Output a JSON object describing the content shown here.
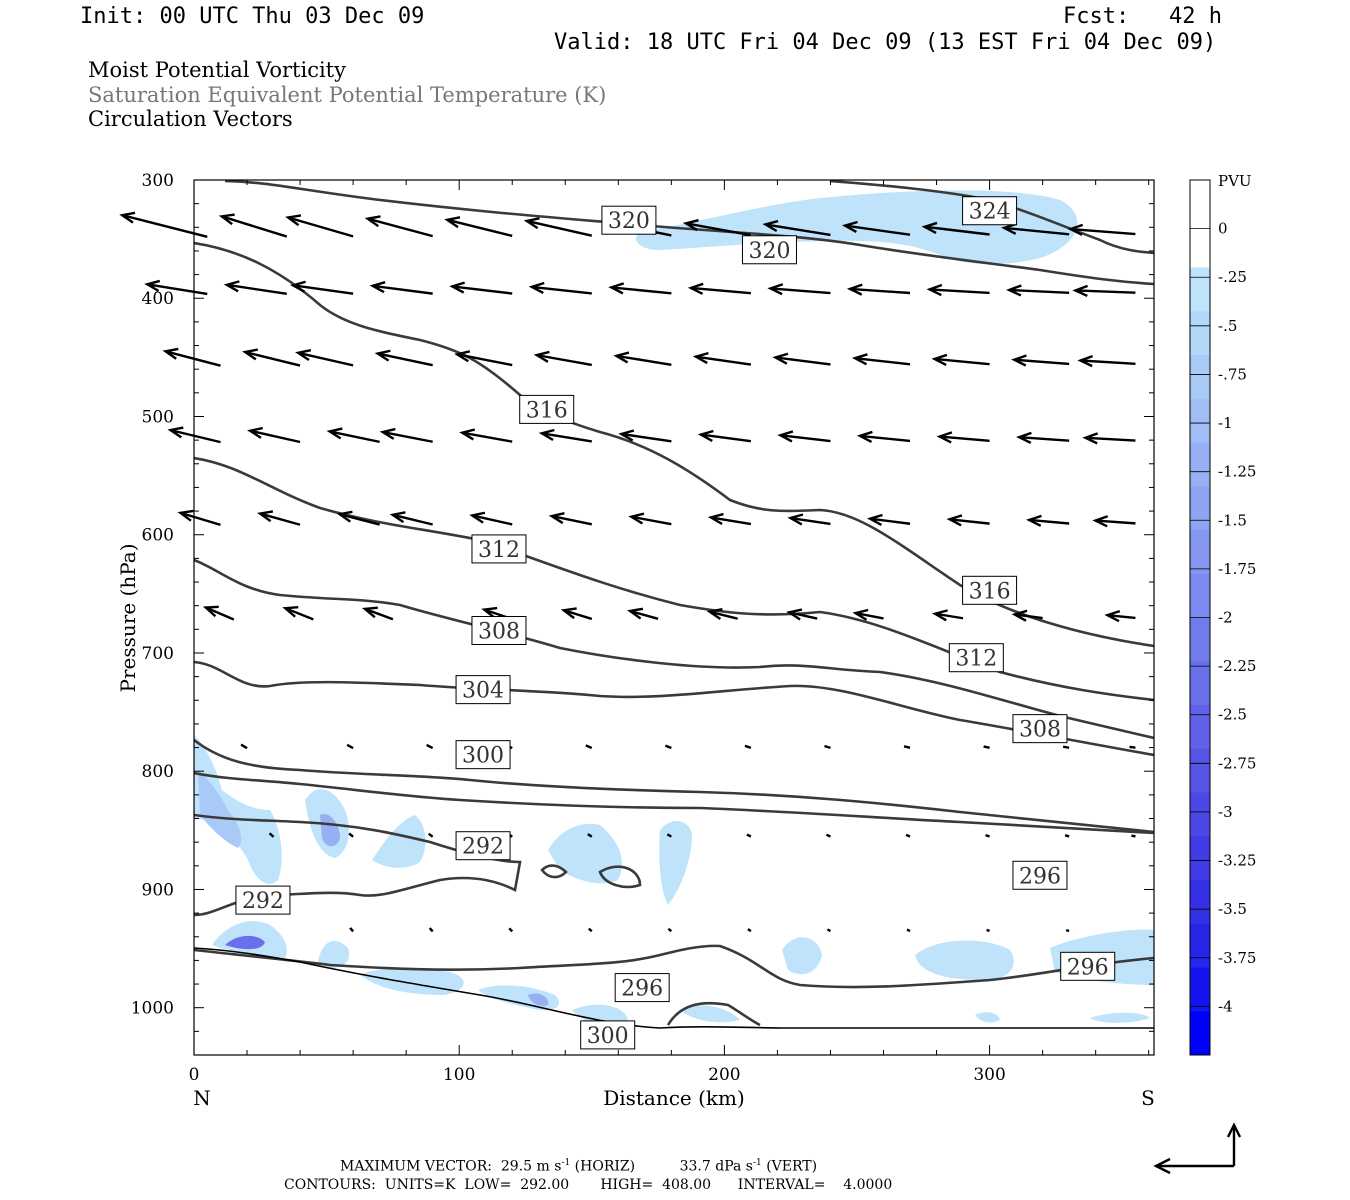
{
  "header": {
    "init": "Init: 00 UTC Thu 03 Dec 09",
    "fcst": "Fcst:   42 h",
    "valid": "Valid: 18 UTC Fri 04 Dec 09 (13 EST Fri 04 Dec 09)"
  },
  "titles": [
    "Moist Potential Vorticity",
    "Saturation Equivalent Potential Temperature (K)",
    "Circulation Vectors"
  ],
  "footer": {
    "max_vector_label": "MAXIMUM VECTOR:",
    "max_vector_horiz": "29.5 m s",
    "horiz_unit": "(HORIZ)",
    "max_vector_vert": "33.7 dPa s",
    "vert_unit": "(VERT)",
    "exp": "-1",
    "contours": "CONTOURS:  UNITS=K  LOW=  292.00       HIGH=  408.00      INTERVAL=    4.0000"
  },
  "chart_data": {
    "type": "cross-section contour",
    "xlabel": "Distance (km)",
    "ylabel": "Pressure (hPa)",
    "x_ticks": [
      0,
      100,
      200,
      300
    ],
    "y_ticks": [
      300,
      400,
      500,
      600,
      700,
      800,
      900,
      1000
    ],
    "xlim": [
      0,
      362
    ],
    "ylim": [
      300,
      1040
    ],
    "y_reversed": true,
    "end_labels": {
      "left": "N",
      "right": "S"
    },
    "colorbar": {
      "unit": "PVU",
      "labels": [
        "0",
        "-.25",
        "-.5",
        "-.75",
        "-1",
        "-1.25",
        "-1.5",
        "-1.75",
        "-2",
        "-2.25",
        "-2.5",
        "-2.75",
        "-3",
        "-3.25",
        "-3.5",
        "-3.75",
        "-4"
      ],
      "colors": [
        "#ffffff",
        "#ffffff",
        "#bee3fb",
        "#b3d7f9",
        "#a9caf7",
        "#a0bdf5",
        "#97b0f3",
        "#8ea3f1",
        "#8596f0",
        "#7c89ee",
        "#737cec",
        "#6a6fea",
        "#6062e9",
        "#5655e8",
        "#4b48e7",
        "#3f3be6",
        "#3330e6",
        "#2626e8",
        "#1414ef",
        "#0000ff"
      ]
    },
    "contour_labels": [
      {
        "value": "320",
        "x": 164,
        "p": 334
      },
      {
        "value": "324",
        "x": 300,
        "p": 326
      },
      {
        "value": "320",
        "x": 217,
        "p": 359
      },
      {
        "value": "316",
        "x": 133,
        "p": 494
      },
      {
        "value": "312",
        "x": 115,
        "p": 612
      },
      {
        "value": "316",
        "x": 300,
        "p": 647
      },
      {
        "value": "308",
        "x": 115,
        "p": 681
      },
      {
        "value": "312",
        "x": 295,
        "p": 704
      },
      {
        "value": "304",
        "x": 109,
        "p": 731
      },
      {
        "value": "308",
        "x": 319,
        "p": 764
      },
      {
        "value": "300",
        "x": 109,
        "p": 786
      },
      {
        "value": "292",
        "x": 109,
        "p": 863
      },
      {
        "value": "296",
        "x": 319,
        "p": 888
      },
      {
        "value": "292",
        "x": 26,
        "p": 909
      },
      {
        "value": "296",
        "x": 337,
        "p": 965
      },
      {
        "value": "296",
        "x": 169,
        "p": 983
      },
      {
        "value": "300",
        "x": 156,
        "p": 1023
      }
    ]
  }
}
